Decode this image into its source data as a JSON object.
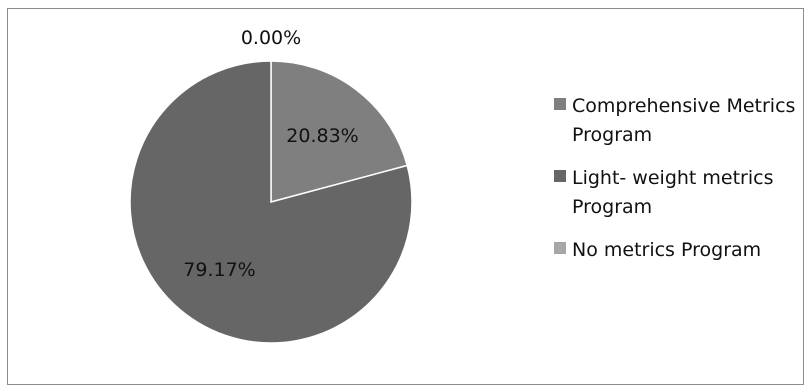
{
  "chart_data": {
    "type": "pie",
    "title": "",
    "slices": [
      {
        "label": "Comprehensive Metrics Program",
        "value": 20.83,
        "value_label": "20.83%",
        "color": "#7f7f7f"
      },
      {
        "label": "Light- weight metrics Program",
        "value": 79.17,
        "value_label": "79.17%",
        "color": "#666666"
      },
      {
        "label": "No metrics Program",
        "value": 0.0,
        "value_label": "0.00%",
        "color": "#a6a6a6"
      }
    ],
    "legend_position": "right"
  }
}
